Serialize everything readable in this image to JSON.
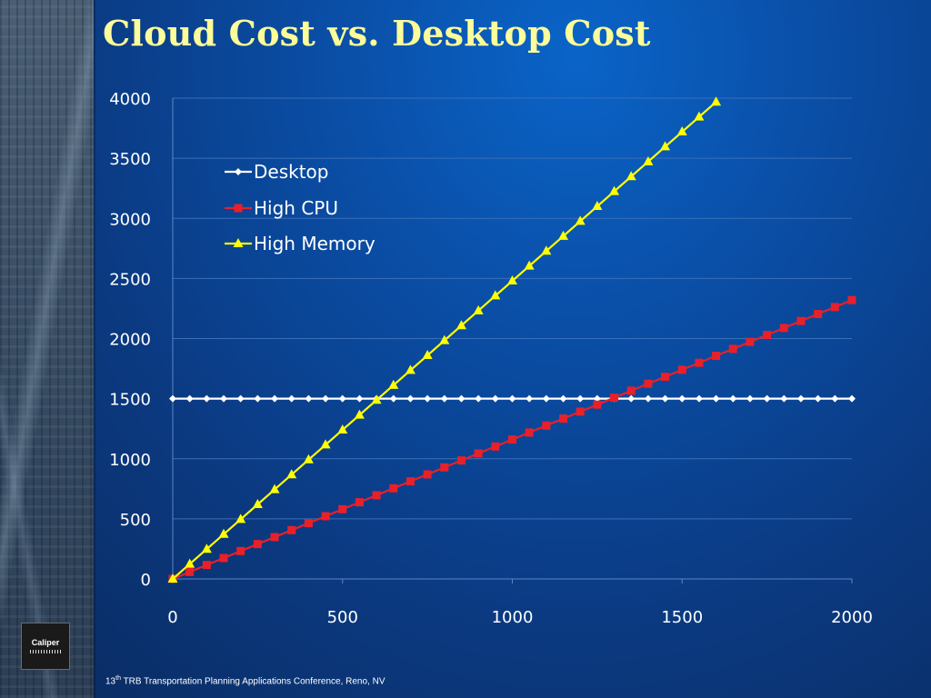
{
  "slide": {
    "title": "Cloud Cost vs. Desktop Cost",
    "logo_text": "Caliper",
    "footer": {
      "prefix": "13",
      "superscript": "th",
      "text": " TRB Transportation Planning Applications Conference, Reno, NV"
    }
  },
  "chart_data": {
    "type": "line",
    "title": "",
    "xlabel": "",
    "ylabel": "",
    "xlim": [
      0,
      2000
    ],
    "ylim": [
      0,
      4000
    ],
    "x_ticks": [
      0,
      500,
      1000,
      1500,
      2000
    ],
    "y_ticks": [
      0,
      500,
      1000,
      1500,
      2000,
      2500,
      3000,
      3500,
      4000
    ],
    "grid": "horizontal",
    "legend_position": "top-left",
    "x_step": 50,
    "series": [
      {
        "name": "Desktop",
        "color": "#ffffff",
        "marker": "diamond",
        "x": [
          0,
          50,
          100,
          150,
          200,
          250,
          300,
          350,
          400,
          450,
          500,
          550,
          600,
          650,
          700,
          750,
          800,
          850,
          900,
          950,
          1000,
          1050,
          1100,
          1150,
          1200,
          1250,
          1300,
          1350,
          1400,
          1450,
          1500,
          1550,
          1600,
          1650,
          1700,
          1750,
          1800,
          1850,
          1900,
          1950,
          2000
        ],
        "values": [
          1500,
          1500,
          1500,
          1500,
          1500,
          1500,
          1500,
          1500,
          1500,
          1500,
          1500,
          1500,
          1500,
          1500,
          1500,
          1500,
          1500,
          1500,
          1500,
          1500,
          1500,
          1500,
          1500,
          1500,
          1500,
          1500,
          1500,
          1500,
          1500,
          1500,
          1500,
          1500,
          1500,
          1500,
          1500,
          1500,
          1500,
          1500,
          1500,
          1500,
          1500
        ]
      },
      {
        "name": "High CPU",
        "color": "#e8202a",
        "marker": "square",
        "x": [
          0,
          50,
          100,
          150,
          200,
          250,
          300,
          350,
          400,
          450,
          500,
          550,
          600,
          650,
          700,
          750,
          800,
          850,
          900,
          950,
          1000,
          1050,
          1100,
          1150,
          1200,
          1250,
          1300,
          1350,
          1400,
          1450,
          1500,
          1550,
          1600,
          1650,
          1700,
          1750,
          1800,
          1850,
          1900,
          1950,
          2000
        ],
        "values": [
          0,
          58,
          116,
          174,
          232,
          290,
          348,
          406,
          464,
          522,
          580,
          638,
          696,
          754,
          812,
          870,
          928,
          986,
          1044,
          1102,
          1160,
          1218,
          1276,
          1334,
          1392,
          1450,
          1508,
          1566,
          1624,
          1682,
          1740,
          1798,
          1856,
          1914,
          1972,
          2030,
          2088,
          2146,
          2204,
          2262,
          2320
        ]
      },
      {
        "name": "High Memory",
        "color": "#ffff00",
        "marker": "triangle",
        "x": [
          0,
          50,
          100,
          150,
          200,
          250,
          300,
          350,
          400,
          450,
          500,
          550,
          600,
          650,
          700,
          750,
          800,
          850,
          900,
          950,
          1000,
          1050,
          1100,
          1150,
          1200,
          1250,
          1300,
          1350,
          1400,
          1450,
          1500,
          1550,
          1600
        ],
        "values": [
          0,
          124,
          248,
          372,
          496,
          620,
          744,
          868,
          992,
          1116,
          1240,
          1364,
          1488,
          1612,
          1736,
          1860,
          1984,
          2108,
          2232,
          2356,
          2480,
          2604,
          2728,
          2852,
          2976,
          3100,
          3224,
          3348,
          3472,
          3596,
          3720,
          3844,
          3968
        ]
      }
    ]
  }
}
